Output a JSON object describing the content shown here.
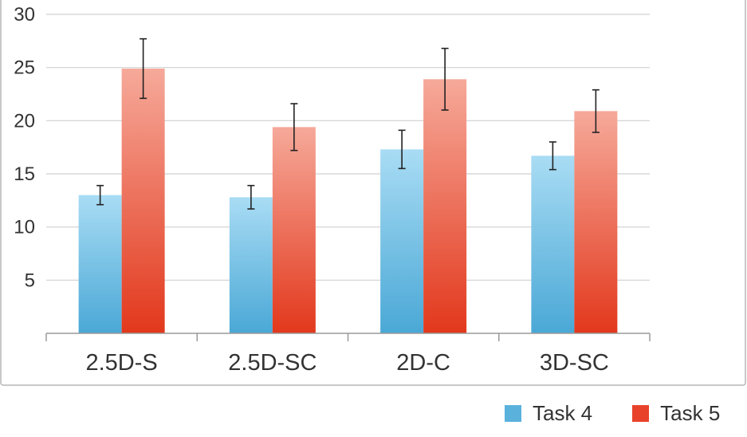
{
  "chart_data": {
    "type": "bar",
    "categories": [
      "2.5D-S",
      "2.5D-SC",
      "2D-C",
      "3D-SC"
    ],
    "series": [
      {
        "name": "Task 4",
        "values": [
          13.0,
          12.8,
          17.3,
          16.7
        ],
        "error": [
          0.9,
          1.1,
          1.8,
          1.3
        ],
        "color": "#5ab1dc"
      },
      {
        "name": "Task 5",
        "values": [
          24.9,
          19.4,
          23.9,
          20.9
        ],
        "error": [
          2.8,
          2.2,
          2.9,
          2.0
        ],
        "color": "#e8432a"
      }
    ],
    "title": "",
    "xlabel": "",
    "ylabel": "",
    "ylim": [
      0,
      30
    ],
    "yticks": [
      "5",
      "10",
      "15",
      "20",
      "25",
      "30"
    ],
    "grid": true,
    "legend_position": "bottom-right"
  }
}
